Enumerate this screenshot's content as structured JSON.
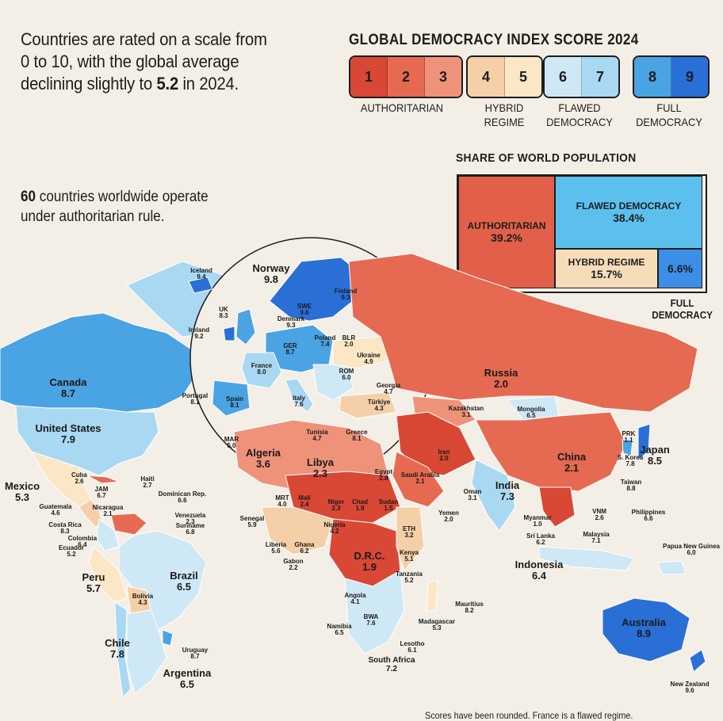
{
  "intro": {
    "line1": "Countries are rated on a scale from",
    "line2": "0 to 10, with the global average",
    "line3_prefix": "declining slightly to ",
    "line3_value": "5.2",
    "line3_suffix": " in 2024."
  },
  "index_title": "GLOBAL DEMOCRACY INDEX SCORE 2024",
  "scale": {
    "groups": [
      {
        "label_lines": [
          "AUTHORITARIAN"
        ],
        "scores": [
          "1",
          "2",
          "3"
        ],
        "colors": [
          "#d94735",
          "#e66a52",
          "#ef927a"
        ]
      },
      {
        "label_lines": [
          "HYBRID",
          "REGIME"
        ],
        "scores": [
          "4",
          "5"
        ],
        "colors": [
          "#f5cfa8",
          "#fbe6c6"
        ]
      },
      {
        "label_lines": [
          "FLAWED",
          "DEMOCRACY"
        ],
        "scores": [
          "6",
          "7"
        ],
        "colors": [
          "#cfe8f5",
          "#a9d8f2"
        ]
      },
      {
        "label_lines": [
          "FULL",
          "DEMOCRACY"
        ],
        "scores": [
          "8",
          "9"
        ],
        "colors": [
          "#4aa3e3",
          "#2a6fd6"
        ]
      }
    ]
  },
  "share": {
    "title": "SHARE OF WORLD POPULATION",
    "authoritarian": {
      "label": "AUTHORITARIAN",
      "value": "39.2%",
      "color": "#e2604a"
    },
    "flawed": {
      "label": "FLAWED DEMOCRACY",
      "value": "38.4%",
      "color": "#5cc0ee"
    },
    "hybrid": {
      "label": "HYBRID REGIME",
      "value": "15.7%",
      "color": "#f7dcba"
    },
    "full": {
      "label": "",
      "value": "6.6%",
      "color": "#3d8ee6"
    },
    "full_label_lines": [
      "FULL",
      "DEMOCRACY"
    ]
  },
  "auth_note": {
    "count": "60",
    "line1_suffix": " countries worldwide operate",
    "line2": "under authoritarian rule."
  },
  "footnote": "Scores have been rounded. France is a flawed regime.",
  "countries": [
    {
      "name": "Canada",
      "score": "8.7",
      "size": "big"
    },
    {
      "name": "United States",
      "score": "7.9",
      "size": "big"
    },
    {
      "name": "Mexico",
      "score": "5.3",
      "size": "big"
    },
    {
      "name": "Cuba",
      "score": "2.6",
      "size": "sm"
    },
    {
      "name": "Haiti",
      "score": "2.7",
      "size": "sm"
    },
    {
      "name": "JAM",
      "score": "6.7",
      "size": "sm"
    },
    {
      "name": "Dominican Rep.",
      "score": "6.6",
      "size": "sm"
    },
    {
      "name": "Guatemala",
      "score": "4.6",
      "size": "sm"
    },
    {
      "name": "Nicaragua",
      "score": "2.1",
      "size": "sm"
    },
    {
      "name": "Costa Rica",
      "score": "8.3",
      "size": "sm"
    },
    {
      "name": "Venezuela",
      "score": "2.3",
      "size": "sm"
    },
    {
      "name": "Suriname",
      "score": "6.8",
      "size": "sm"
    },
    {
      "name": "Colombia",
      "score": "6.4",
      "size": "sm"
    },
    {
      "name": "Ecuador",
      "score": "5.2",
      "size": "sm"
    },
    {
      "name": "Peru",
      "score": "5.7",
      "size": "big"
    },
    {
      "name": "Brazil",
      "score": "6.5",
      "size": "big"
    },
    {
      "name": "Bolivia",
      "score": "4.3",
      "size": "sm"
    },
    {
      "name": "Chile",
      "score": "7.8",
      "size": "big"
    },
    {
      "name": "Uruguay",
      "score": "8.7",
      "size": "sm"
    },
    {
      "name": "Argentina",
      "score": "6.5",
      "size": "big"
    },
    {
      "name": "Iceland",
      "score": "9.4",
      "size": "sm"
    },
    {
      "name": "Norway",
      "score": "9.8",
      "size": "big"
    },
    {
      "name": "Finland",
      "score": "9.3",
      "size": "sm"
    },
    {
      "name": "SWE",
      "score": "9.6",
      "size": "sm"
    },
    {
      "name": "Denmark",
      "score": "9.3",
      "size": "sm"
    },
    {
      "name": "UK",
      "score": "8.3",
      "size": "sm"
    },
    {
      "name": "Ireland",
      "score": "9.2",
      "size": "sm"
    },
    {
      "name": "Poland",
      "score": "7.4",
      "size": "sm"
    },
    {
      "name": "BLR",
      "score": "2.0",
      "size": "sm"
    },
    {
      "name": "GER",
      "score": "8.7",
      "size": "sm"
    },
    {
      "name": "Ukraine",
      "score": "4.9",
      "size": "sm"
    },
    {
      "name": "France",
      "score": "8.0",
      "size": "sm"
    },
    {
      "name": "ROM",
      "score": "6.0",
      "size": "sm"
    },
    {
      "name": "Georgia",
      "score": "4.7",
      "size": "sm"
    },
    {
      "name": "Portugal",
      "score": "8.1",
      "size": "sm"
    },
    {
      "name": "Spain",
      "score": "8.1",
      "size": "sm"
    },
    {
      "name": "Italy",
      "score": "7.6",
      "size": "sm"
    },
    {
      "name": "Türkiye",
      "score": "4.3",
      "size": "sm"
    },
    {
      "name": "MAR",
      "score": "5.0",
      "size": "sm"
    },
    {
      "name": "Tunisia",
      "score": "4.7",
      "size": "sm"
    },
    {
      "name": "Greece",
      "score": "8.1",
      "size": "sm"
    },
    {
      "name": "Algeria",
      "score": "3.6",
      "size": "big"
    },
    {
      "name": "Libya",
      "score": "2.3",
      "size": "big"
    },
    {
      "name": "Egypt",
      "score": "2.8",
      "size": "sm"
    },
    {
      "name": "Russia",
      "score": "2.0",
      "size": "big"
    },
    {
      "name": "Kazakhstan",
      "score": "3.1",
      "size": "sm"
    },
    {
      "name": "Mongolia",
      "score": "6.5",
      "size": "sm"
    },
    {
      "name": "Iran",
      "score": "2.0",
      "size": "sm"
    },
    {
      "name": "Saudi Arabia",
      "score": "2.1",
      "size": "sm"
    },
    {
      "name": "Oman",
      "score": "3.1",
      "size": "sm"
    },
    {
      "name": "Yemen",
      "score": "2.0",
      "size": "sm"
    },
    {
      "name": "China",
      "score": "2.1",
      "size": "big"
    },
    {
      "name": "India",
      "score": "7.3",
      "size": "big"
    },
    {
      "name": "PRK",
      "score": "1.1",
      "size": "sm"
    },
    {
      "name": "Japan",
      "score": "8.5",
      "size": "big"
    },
    {
      "name": "S. Korea",
      "score": "7.8",
      "size": "sm"
    },
    {
      "name": "Taiwan",
      "score": "8.8",
      "size": "sm"
    },
    {
      "name": "Myanmar",
      "score": "1.0",
      "size": "sm"
    },
    {
      "name": "VNM",
      "score": "2.6",
      "size": "sm"
    },
    {
      "name": "Philippines",
      "score": "6.6",
      "size": "sm"
    },
    {
      "name": "Sri Lanka",
      "score": "6.2",
      "size": "sm"
    },
    {
      "name": "Malaysia",
      "score": "7.1",
      "size": "sm"
    },
    {
      "name": "Indonesia",
      "score": "6.4",
      "size": "big"
    },
    {
      "name": "Papua New Guinea",
      "score": "6.0",
      "size": "sm"
    },
    {
      "name": "Australia",
      "score": "8.9",
      "size": "big"
    },
    {
      "name": "New Zealand",
      "score": "9.6",
      "size": "sm"
    },
    {
      "name": "MRT",
      "score": "4.0",
      "size": "sm"
    },
    {
      "name": "Mali",
      "score": "2.4",
      "size": "sm"
    },
    {
      "name": "Niger",
      "score": "2.3",
      "size": "sm"
    },
    {
      "name": "Chad",
      "score": "1.9",
      "size": "sm"
    },
    {
      "name": "Sudan",
      "score": "1.5",
      "size": "sm"
    },
    {
      "name": "Senegal",
      "score": "5.9",
      "size": "sm"
    },
    {
      "name": "Nigeria",
      "score": "4.2",
      "size": "sm"
    },
    {
      "name": "ETH",
      "score": "3.2",
      "size": "sm"
    },
    {
      "name": "Liberia",
      "score": "5.6",
      "size": "sm"
    },
    {
      "name": "Ghana",
      "score": "6.2",
      "size": "sm"
    },
    {
      "name": "Gabon",
      "score": "2.2",
      "size": "sm"
    },
    {
      "name": "D.R.C.",
      "score": "1.9",
      "size": "big"
    },
    {
      "name": "Kenya",
      "score": "5.1",
      "size": "sm"
    },
    {
      "name": "Tanzania",
      "score": "5.2",
      "size": "sm"
    },
    {
      "name": "Angola",
      "score": "4.1",
      "size": "sm"
    },
    {
      "name": "Mauritius",
      "score": "8.2",
      "size": "sm"
    },
    {
      "name": "Madagascar",
      "score": "5.3",
      "size": "sm"
    },
    {
      "name": "Namibia",
      "score": "6.5",
      "size": "sm"
    },
    {
      "name": "BWA",
      "score": "7.6",
      "size": "sm"
    },
    {
      "name": "Lesotho",
      "score": "6.1",
      "size": "sm"
    },
    {
      "name": "South Africa",
      "score": "7.2",
      "size": "med"
    }
  ]
}
